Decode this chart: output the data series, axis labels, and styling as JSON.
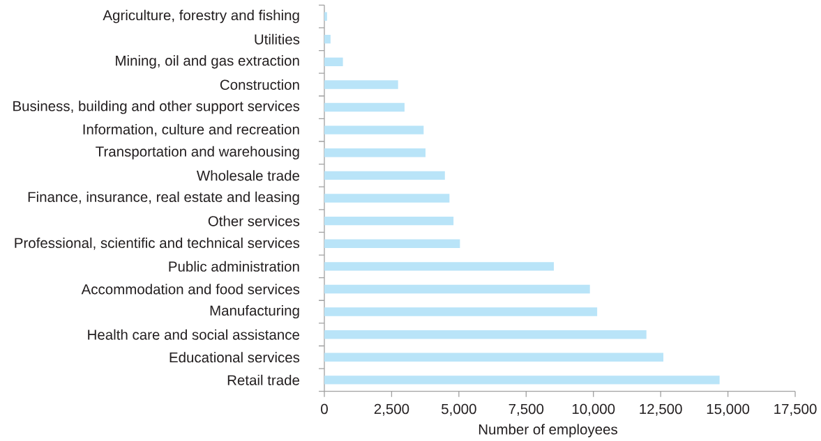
{
  "chart_data": {
    "type": "bar",
    "orientation": "horizontal",
    "categories": [
      "Agriculture, forestry and fishing",
      "Utilities",
      "Mining, oil and gas extraction",
      "Construction",
      "Business, building and other support services",
      "Information, culture and recreation",
      "Transportation and warehousing",
      "Wholesale trade",
      "Finance, insurance, real estate and leasing",
      "Other services",
      "Professional, scientific and technical services",
      "Public administration",
      "Accommodation and food services",
      "Manufacturing",
      "Health care and social assistance",
      "Educational services",
      "Retail trade"
    ],
    "values": [
      100,
      230,
      690,
      2740,
      2980,
      3690,
      3760,
      4480,
      4650,
      4800,
      5040,
      8530,
      9870,
      10140,
      11970,
      12600,
      14690
    ],
    "color": "#b9e4f8",
    "xlabel": "Number of employees",
    "xlim": [
      0,
      17500
    ],
    "xticks": [
      0,
      {
        "value": 2500,
        "label": "2,500"
      },
      {
        "value": 5000,
        "label": "5,000"
      },
      {
        "value": 7500,
        "label": "7,500"
      },
      {
        "value": 10000,
        "label": "10,000"
      },
      {
        "value": 12500,
        "label": "12,500"
      },
      {
        "value": 15000,
        "label": "15,000"
      },
      {
        "value": 17500,
        "label": "17,500"
      }
    ]
  }
}
